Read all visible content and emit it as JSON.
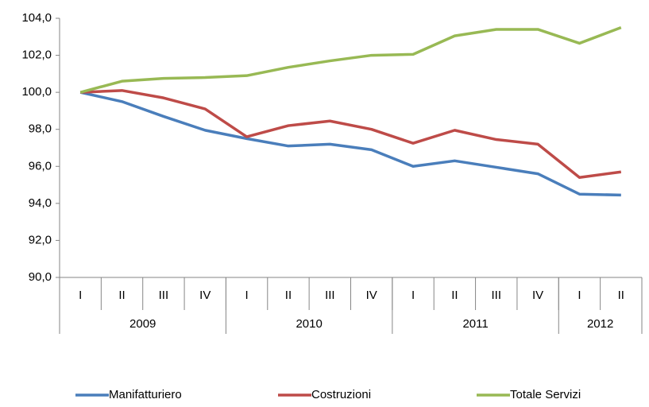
{
  "chart_data": {
    "type": "line",
    "groups": [
      {
        "label": "2009",
        "categories": [
          "I",
          "II",
          "III",
          "IV"
        ]
      },
      {
        "label": "2010",
        "categories": [
          "I",
          "II",
          "III",
          "IV"
        ]
      },
      {
        "label": "2011",
        "categories": [
          "I",
          "II",
          "III",
          "IV"
        ]
      },
      {
        "label": "2012",
        "categories": [
          "I",
          "II"
        ]
      }
    ],
    "series": [
      {
        "name": "Manifatturiero",
        "color": "#4a7ebb",
        "values": [
          100.0,
          99.5,
          98.7,
          97.95,
          97.5,
          97.1,
          97.2,
          96.9,
          96.0,
          96.3,
          95.95,
          95.6,
          94.5,
          94.45
        ]
      },
      {
        "name": "Costruzioni",
        "color": "#be4b48",
        "values": [
          100.0,
          100.1,
          99.7,
          99.1,
          97.6,
          98.2,
          98.45,
          98.0,
          97.25,
          97.95,
          97.45,
          97.2,
          95.4,
          95.7
        ]
      },
      {
        "name": "Totale Servizi",
        "color": "#98b954",
        "values": [
          100.0,
          100.6,
          100.75,
          100.8,
          100.9,
          101.35,
          101.7,
          102.0,
          102.05,
          103.05,
          103.4,
          103.4,
          102.65,
          103.5
        ]
      }
    ],
    "ylim": [
      90,
      104
    ],
    "yticks": [
      {
        "value": 90,
        "label": "90,0"
      },
      {
        "value": 92,
        "label": "92,0"
      },
      {
        "value": 94,
        "label": "94,0"
      },
      {
        "value": 96,
        "label": "96,0"
      },
      {
        "value": 98,
        "label": "98,0"
      },
      {
        "value": 100,
        "label": "100,0"
      },
      {
        "value": 102,
        "label": "102,0"
      },
      {
        "value": 104,
        "label": "104,0"
      }
    ],
    "legend": "bottom"
  }
}
